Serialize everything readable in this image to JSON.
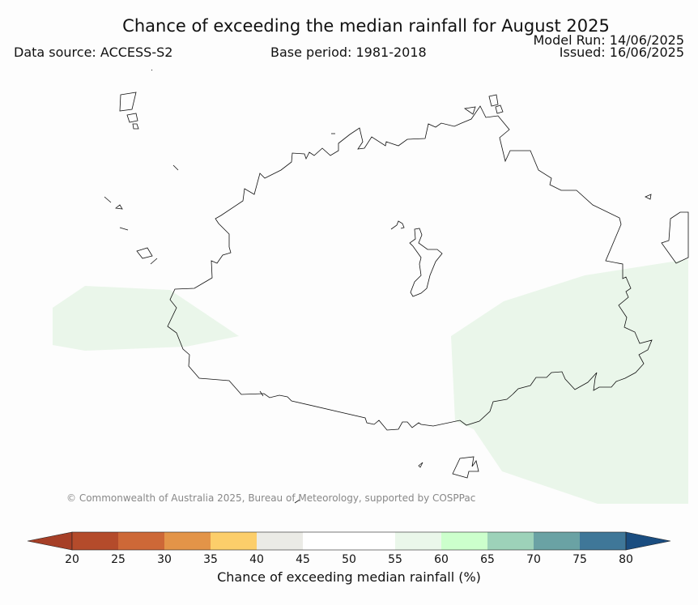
{
  "header": {
    "title": "Chance of exceeding the median rainfall for August 2025",
    "data_source": "Data source: ACCESS-S2",
    "base_period": "Base period: 1981-2018",
    "model_run": "Model Run: 14/06/2025",
    "issued": "Issued: 16/06/2025"
  },
  "map": {
    "copyright": "© Commonwealth of Australia 2025, Bureau of Meteorology, supported by COSPPac",
    "shaded_category": "55-60"
  },
  "legend": {
    "label": "Chance of exceeding median rainfall (%)",
    "ticks": [
      "20",
      "25",
      "30",
      "35",
      "40",
      "45",
      "50",
      "55",
      "60",
      "65",
      "70",
      "75",
      "80"
    ],
    "colors": [
      "#a63f27",
      "#b44b2b",
      "#cd6837",
      "#e39448",
      "#fcce6a",
      "#ebebe6",
      "#ffffff",
      "#ffffff",
      "#eaf7ea",
      "#ccffcc",
      "#9dd2b9",
      "#6aa2a4",
      "#3f7798",
      "#1a4d80"
    ]
  }
}
